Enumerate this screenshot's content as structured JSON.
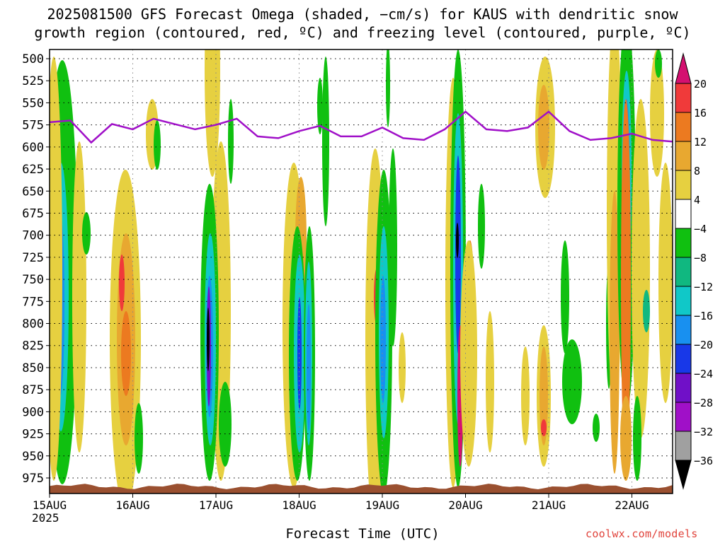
{
  "title": {
    "line1": "2025081500 GFS Forecast Omega (shaded, −cm/s) for KAUS with dendritic snow",
    "line2": "growth region (contoured, red, ºC) and freezing level (contoured, purple, ºC)"
  },
  "x_axis": {
    "label": "Forecast Time (UTC)",
    "ticks": [
      "15AUG",
      "16AUG",
      "17AUG",
      "18AUG",
      "19AUG",
      "20AUG",
      "21AUG",
      "22AUG"
    ],
    "year_label": "2025"
  },
  "y_axis": {
    "ticks": [
      "500",
      "525",
      "550",
      "575",
      "600",
      "625",
      "650",
      "675",
      "700",
      "725",
      "750",
      "775",
      "800",
      "825",
      "850",
      "875",
      "900",
      "925",
      "950",
      "975"
    ]
  },
  "credit": "coolwx.com/models",
  "colorbar": {
    "labels": [
      "20",
      "16",
      "12",
      "8",
      "4",
      "−4",
      "−8",
      "−12",
      "−16",
      "−20",
      "−24",
      "−28",
      "−32",
      "−36"
    ],
    "colors": [
      "#d41070",
      "#f03a3a",
      "#ec7a20",
      "#e8a830",
      "#e6d040",
      "#ffffff",
      "#10c010",
      "#10b880",
      "#10c8c8",
      "#1890f0",
      "#1838e8",
      "#7010c8",
      "#a010c8",
      "#a0a0a0",
      "#000000"
    ]
  },
  "chart_data": {
    "type": "heatmap",
    "x_range": [
      "2025-08-15 00Z",
      "2025-08-22 12Z"
    ],
    "y_range_hPa": [
      500,
      990
    ],
    "y_reversed": true,
    "grid": true,
    "freezing_level_hPa": [
      [
        "2025-08-15 00Z",
        572
      ],
      [
        "2025-08-15 06Z",
        570
      ],
      [
        "2025-08-15 12Z",
        595
      ],
      [
        "2025-08-15 18Z",
        574
      ],
      [
        "2025-08-16 00Z",
        580
      ],
      [
        "2025-08-16 06Z",
        568
      ],
      [
        "2025-08-16 12Z",
        574
      ],
      [
        "2025-08-16 18Z",
        580
      ],
      [
        "2025-08-17 00Z",
        575
      ],
      [
        "2025-08-17 06Z",
        568
      ],
      [
        "2025-08-17 12Z",
        588
      ],
      [
        "2025-08-17 18Z",
        590
      ],
      [
        "2025-08-18 00Z",
        582
      ],
      [
        "2025-08-18 06Z",
        576
      ],
      [
        "2025-08-18 12Z",
        588
      ],
      [
        "2025-08-18 18Z",
        588
      ],
      [
        "2025-08-19 00Z",
        578
      ],
      [
        "2025-08-19 06Z",
        590
      ],
      [
        "2025-08-19 12Z",
        592
      ],
      [
        "2025-08-19 18Z",
        580
      ],
      [
        "2025-08-20 00Z",
        560
      ],
      [
        "2025-08-20 06Z",
        580
      ],
      [
        "2025-08-20 12Z",
        582
      ],
      [
        "2025-08-20 18Z",
        578
      ],
      [
        "2025-08-21 00Z",
        560
      ],
      [
        "2025-08-21 06Z",
        582
      ],
      [
        "2025-08-21 12Z",
        592
      ],
      [
        "2025-08-21 18Z",
        590
      ],
      [
        "2025-08-22 00Z",
        585
      ],
      [
        "2025-08-22 06Z",
        592
      ],
      [
        "2025-08-22 12Z",
        594
      ]
    ]
  }
}
